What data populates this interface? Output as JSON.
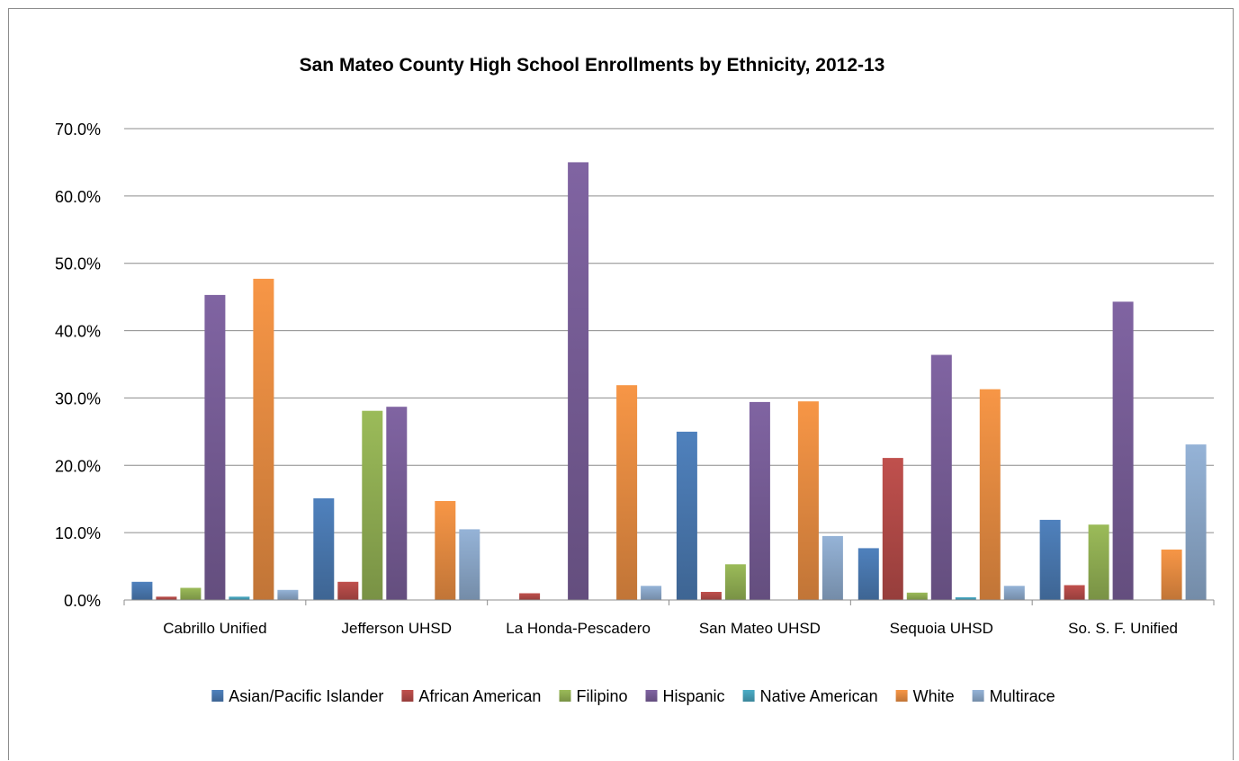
{
  "chart_data": {
    "type": "bar",
    "title": "San Mateo County High School Enrollments by Ethnicity, 2012-13",
    "xlabel": "",
    "ylabel": "",
    "ylim": [
      0,
      70
    ],
    "yticks": [
      "0.0%",
      "10.0%",
      "20.0%",
      "30.0%",
      "40.0%",
      "50.0%",
      "60.0%",
      "70.0%"
    ],
    "grid": true,
    "legend_position": "bottom",
    "categories": [
      "Cabrillo Unified",
      "Jefferson UHSD",
      "La Honda-Pescadero",
      "San Mateo UHSD",
      "Sequoia UHSD",
      "So. S. F. Unified"
    ],
    "series": [
      {
        "name": "Asian/Pacific Islander",
        "color": "#4f81bd",
        "values": [
          2.7,
          15.1,
          0.0,
          25.0,
          7.7,
          11.9
        ]
      },
      {
        "name": "African American",
        "color": "#c0504d",
        "values": [
          0.5,
          2.7,
          1.0,
          1.2,
          21.1,
          2.2
        ]
      },
      {
        "name": "Filipino",
        "color": "#9bbb59",
        "values": [
          1.8,
          28.1,
          0.0,
          5.3,
          1.1,
          11.2
        ]
      },
      {
        "name": "Hispanic",
        "color": "#8064a2",
        "values": [
          45.3,
          28.7,
          65.0,
          29.4,
          36.4,
          44.3
        ]
      },
      {
        "name": "Native American",
        "color": "#4bacc6",
        "values": [
          0.5,
          0.0,
          0.0,
          0.0,
          0.4,
          0.0
        ]
      },
      {
        "name": "White",
        "color": "#f79646",
        "values": [
          47.7,
          14.7,
          31.9,
          29.5,
          31.3,
          7.5
        ]
      },
      {
        "name": "Multirace",
        "color": "#95b3d7",
        "values": [
          1.5,
          10.5,
          2.1,
          9.5,
          2.1,
          23.1
        ]
      }
    ]
  }
}
